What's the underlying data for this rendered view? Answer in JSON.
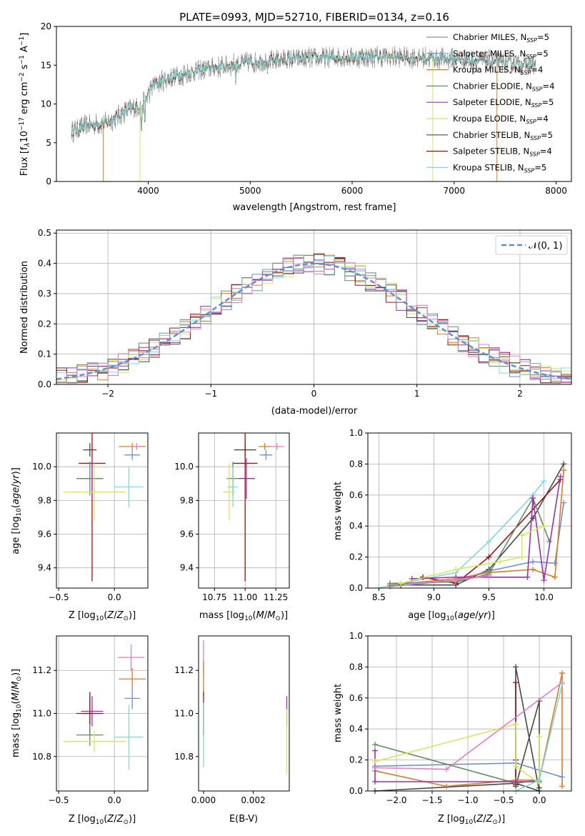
{
  "figure_title": "PLATE=0993, MJD=52710, FIBERID=0134, z=0.16",
  "colors": {
    "chabrier_miles": "#909090",
    "salpeter_miles": "#6f8fd8",
    "kroupa_miles": "#e0781f",
    "chabrier_elodie": "#5f8f5f",
    "salpeter_elodie": "#9b30b0",
    "kroupa_elodie": "#d6e85a",
    "chabrier_stelib": "#484848",
    "salpeter_stelib": "#a01010",
    "kroupa_stelib": "#7fdad8",
    "pink": "#e87bc8",
    "normal_curve": "#5b8fd6",
    "grid": "#b0b0b0"
  },
  "chart_data": [
    {
      "id": "spectrum",
      "type": "line",
      "xlabel": "wavelength [Angstrom, rest frame]",
      "ylabel": "Flux [fλ10⁻¹⁷ erg cm⁻² s⁻¹ A⁻¹]",
      "xlim": [
        3100,
        8150
      ],
      "ylim": [
        0,
        20
      ],
      "xticks": [
        4000,
        5000,
        6000,
        7000,
        8000
      ],
      "yticks": [
        0,
        5,
        10,
        15,
        20
      ],
      "grid": false,
      "legend_position": "right",
      "legend": [
        "Chabrier MILES, N_SSP=5",
        "Salpeter MILES, N_SSP=5",
        "Kroupa MILES, N_SSP=4",
        "Chabrier ELODIE, N_SSP=4",
        "Salpeter ELODIE, N_SSP=5",
        "Kroupa ELODIE, N_SSP=4",
        "Chabrier STELIB, N_SSP=5",
        "Salpeter STELIB, N_SSP=4",
        "Kroupa STELIB, N_SSP=5"
      ],
      "continuum_x": [
        3250,
        3400,
        3600,
        3800,
        3950,
        4050,
        4300,
        4600,
        5000,
        5400,
        5800,
        6200,
        6600,
        7000,
        7400,
        7800
      ],
      "continuum_y": [
        6.5,
        7.2,
        7.6,
        9.2,
        10.0,
        12.5,
        13.8,
        14.6,
        15.4,
        15.8,
        16.0,
        16.1,
        16.0,
        15.8,
        15.4,
        15.0
      ]
    },
    {
      "id": "residuals",
      "type": "histogram",
      "xlabel": "(data-model)/error",
      "ylabel": "Normed distribution",
      "xlim": [
        -2.5,
        2.5
      ],
      "ylim": [
        0,
        0.51
      ],
      "xticks": [
        -2,
        -1,
        0,
        1,
        2
      ],
      "yticks": [
        0.0,
        0.1,
        0.2,
        0.3,
        0.4,
        0.5
      ],
      "grid": true,
      "legend_position": "top-right",
      "legend": [
        "𝒩(0, 1)"
      ],
      "bin_width": 0.1
    },
    {
      "id": "age_vs_Z",
      "type": "scatter",
      "xlabel": "Z [log₁₀(Z/Z⊙)]",
      "ylabel": "age  [log₁₀(age/yr)]",
      "xlim": [
        -0.52,
        0.3
      ],
      "ylim": [
        9.28,
        10.2
      ],
      "xticks": [
        -0.5,
        0.0
      ],
      "yticks": [
        9.4,
        9.6,
        9.8,
        10.0
      ],
      "grid": true,
      "points": [
        {
          "c": "chabrier_stelib",
          "x": -0.22,
          "xerr": 0.06,
          "y": 10.1,
          "yerr": 0.04
        },
        {
          "c": "salpeter_stelib",
          "x": -0.2,
          "xerr": 0.12,
          "y": 10.02,
          "yerr": 0.7
        },
        {
          "c": "salpeter_elodie",
          "x": -0.2,
          "xerr": 0.1,
          "y": 9.93,
          "yerr": 0.12
        },
        {
          "c": "chabrier_elodie",
          "x": -0.22,
          "xerr": 0.12,
          "y": 9.93,
          "yerr": 0.1
        },
        {
          "c": "kroupa_elodie",
          "x": -0.18,
          "xerr": 0.28,
          "y": 9.85,
          "yerr": 0.17
        },
        {
          "c": "kroupa_miles",
          "x": 0.16,
          "xerr": 0.12,
          "y": 10.12,
          "yerr": 0.02
        },
        {
          "c": "pink",
          "x": 0.2,
          "xerr": 0.04,
          "y": 10.12,
          "yerr": 0.02
        },
        {
          "c": "salpeter_miles",
          "x": 0.16,
          "xerr": 0.07,
          "y": 10.07,
          "yerr": 0.03
        },
        {
          "c": "kroupa_stelib",
          "x": 0.13,
          "xerr": 0.13,
          "y": 9.88,
          "yerr": 0.12
        }
      ]
    },
    {
      "id": "age_vs_mass",
      "type": "scatter",
      "xlabel": "mass [log₁₀(M/M⊙)]",
      "ylabel": "",
      "xlim": [
        10.62,
        11.36
      ],
      "ylim": [
        9.28,
        10.2
      ],
      "xticks": [
        10.75,
        11.0,
        11.25
      ],
      "yticks": [
        9.4,
        9.6,
        9.8,
        10.0
      ],
      "grid": true,
      "points": [
        {
          "c": "chabrier_stelib",
          "x": 11.0,
          "xerr": 0.09,
          "y": 10.1,
          "yerr": 0.04
        },
        {
          "c": "salpeter_stelib",
          "x": 11.0,
          "xerr": 0.1,
          "y": 10.02,
          "yerr": 0.7
        },
        {
          "c": "salpeter_elodie",
          "x": 11.01,
          "xerr": 0.07,
          "y": 9.93,
          "yerr": 0.12
        },
        {
          "c": "chabrier_elodie",
          "x": 10.9,
          "xerr": 0.05,
          "y": 9.93,
          "yerr": 0.1
        },
        {
          "c": "kroupa_elodie",
          "x": 10.87,
          "xerr": 0.05,
          "y": 9.85,
          "yerr": 0.17
        },
        {
          "c": "kroupa_miles",
          "x": 11.16,
          "xerr": 0.05,
          "y": 10.12,
          "yerr": 0.02
        },
        {
          "c": "pink",
          "x": 11.26,
          "xerr": 0.06,
          "y": 10.12,
          "yerr": 0.02
        },
        {
          "c": "salpeter_miles",
          "x": 11.17,
          "xerr": 0.05,
          "y": 10.07,
          "yerr": 0.03
        },
        {
          "c": "kroupa_stelib",
          "x": 10.9,
          "xerr": 0.04,
          "y": 9.88,
          "yerr": 0.12
        }
      ]
    },
    {
      "id": "mass_vs_Z",
      "type": "scatter",
      "xlabel": "Z [log₁₀(Z/Z⊙)]",
      "ylabel": "mass [log₁₀(M/M⊙)]",
      "xlim": [
        -0.52,
        0.3
      ],
      "ylim": [
        10.64,
        11.36
      ],
      "xticks": [
        -0.5,
        0.0
      ],
      "yticks": [
        10.8,
        11.0,
        11.2
      ],
      "grid": true,
      "points": [
        {
          "c": "chabrier_stelib",
          "x": -0.22,
          "xerr": 0.06,
          "y": 11.0,
          "yerr": 0.08
        },
        {
          "c": "salpeter_stelib",
          "x": -0.22,
          "xerr": 0.12,
          "y": 11.0,
          "yerr": 0.1
        },
        {
          "c": "salpeter_elodie",
          "x": -0.2,
          "xerr": 0.1,
          "y": 11.01,
          "yerr": 0.07
        },
        {
          "c": "chabrier_elodie",
          "x": -0.22,
          "xerr": 0.12,
          "y": 10.9,
          "yerr": 0.05
        },
        {
          "c": "kroupa_elodie",
          "x": -0.18,
          "xerr": 0.28,
          "y": 10.87,
          "yerr": 0.05
        },
        {
          "c": "kroupa_miles",
          "x": 0.16,
          "xerr": 0.12,
          "y": 11.16,
          "yerr": 0.05
        },
        {
          "c": "pink",
          "x": 0.15,
          "xerr": 0.12,
          "y": 11.26,
          "yerr": 0.06
        },
        {
          "c": "salpeter_miles",
          "x": 0.16,
          "xerr": 0.07,
          "y": 11.07,
          "yerr": 0.05
        },
        {
          "c": "kroupa_stelib",
          "x": 0.13,
          "xerr": 0.13,
          "y": 10.89,
          "yerr": 0.15
        }
      ]
    },
    {
      "id": "mass_vs_ebv",
      "type": "scatter",
      "xlabel": "E(B-V)",
      "ylabel": "",
      "xlim": [
        -0.0002,
        0.00345
      ],
      "ylim": [
        10.64,
        11.36
      ],
      "xticks": [
        0.0,
        0.002
      ],
      "xtick_labels": [
        "0.000",
        "0.002"
      ],
      "yticks": [
        10.8,
        11.0,
        11.2
      ],
      "grid": false,
      "points": [
        {
          "c": "pink",
          "x": 0.0,
          "xerr": 0,
          "y": 11.26,
          "yerr": 0.08
        },
        {
          "c": "kroupa_miles",
          "x": 0.0,
          "xerr": 0,
          "y": 11.16,
          "yerr": 0.08
        },
        {
          "c": "salpeter_stelib",
          "x": 0.0,
          "xerr": 0,
          "y": 11.0,
          "yerr": 0.1
        },
        {
          "c": "kroupa_stelib",
          "x": 0.0,
          "xerr": 0,
          "y": 10.9,
          "yerr": 0.15
        },
        {
          "c": "salpeter_elodie",
          "x": 0.00335,
          "xerr": 0,
          "y": 11.01,
          "yerr": 0.07
        },
        {
          "c": "kroupa_elodie",
          "x": 0.00335,
          "xerr": 0,
          "y": 10.87,
          "yerr": 0.15
        }
      ]
    },
    {
      "id": "weight_vs_age",
      "type": "line",
      "xlabel": "age  [log₁₀(age/yr)]",
      "ylabel": "mass weight",
      "xlim": [
        8.4,
        10.25
      ],
      "ylim": [
        0,
        1.0
      ],
      "xticks": [
        8.5,
        9.0,
        9.5,
        10.0
      ],
      "yticks": [
        0.0,
        0.2,
        0.4,
        0.6,
        0.8,
        1.0
      ],
      "grid": true,
      "series": [
        {
          "c": "kroupa_stelib",
          "x": [
            8.5,
            9.2,
            9.5,
            9.9,
            10.0
          ],
          "y": [
            0.0,
            0.1,
            0.3,
            0.6,
            0.69
          ]
        },
        {
          "c": "chabrier_stelib",
          "x": [
            8.7,
            9.2,
            9.5,
            9.9,
            10.18
          ],
          "y": [
            0.02,
            0.02,
            0.12,
            0.45,
            0.8
          ]
        },
        {
          "c": "salpeter_stelib",
          "x": [
            8.9,
            9.2,
            9.5,
            10.15
          ],
          "y": [
            0.07,
            0.03,
            0.2,
            0.7
          ]
        },
        {
          "c": "salpeter_miles",
          "x": [
            8.6,
            9.2,
            9.5,
            9.9,
            10.1,
            10.18
          ],
          "y": [
            0.01,
            0.05,
            0.11,
            0.17,
            0.16,
            0.55
          ]
        },
        {
          "c": "kroupa_miles",
          "x": [
            8.6,
            9.2,
            9.5,
            9.9,
            10.1,
            10.18
          ],
          "y": [
            0.02,
            0.06,
            0.1,
            0.12,
            0.07,
            0.76
          ]
        },
        {
          "c": "chabrier_elodie",
          "x": [
            8.6,
            9.2,
            9.5,
            9.9,
            10.05
          ],
          "y": [
            0.03,
            0.04,
            0.09,
            0.58,
            0.3
          ]
        },
        {
          "c": "salpeter_elodie",
          "x": [
            8.8,
            9.2,
            9.85,
            9.9,
            10.0,
            10.15
          ],
          "y": [
            0.06,
            0.07,
            0.07,
            0.58,
            0.05,
            0.72
          ]
        },
        {
          "c": "kroupa_elodie",
          "x": [
            8.7,
            9.2,
            9.6,
            9.8,
            9.8,
            10.0
          ],
          "y": [
            0.03,
            0.12,
            0.17,
            0.2,
            0.34,
            0.4
          ]
        },
        {
          "c": "pink",
          "x": [
            8.8,
            9.2,
            9.5
          ],
          "y": [
            0.03,
            0.05,
            0.08
          ]
        }
      ]
    },
    {
      "id": "weight_vs_Z",
      "type": "line",
      "xlabel": "Z [log₁₀(Z/Z⊙)]",
      "ylabel": "mass weight",
      "xlim": [
        -2.4,
        0.45
      ],
      "ylim": [
        0,
        1.0
      ],
      "xticks": [
        -2.0,
        -1.5,
        -1.0,
        -0.5,
        0.0
      ],
      "yticks": [
        0.0,
        0.2,
        0.4,
        0.6,
        0.8,
        1.0
      ],
      "grid": true,
      "series": [
        {
          "c": "chabrier_stelib",
          "x": [
            -2.3,
            -0.33,
            0.0,
            -0.33,
            -0.33,
            0.0,
            0.0
          ],
          "y": [
            0.0,
            0.05,
            0.0,
            0.8,
            0.03,
            0.58,
            0.02
          ]
        },
        {
          "c": "salpeter_stelib",
          "x": [
            -0.33,
            -0.33,
            -0.33
          ],
          "y": [
            0.7,
            0.2,
            0.04
          ]
        },
        {
          "c": "kroupa_miles",
          "x": [
            -2.3,
            -1.3,
            -0.33,
            0.0,
            0.32,
            0.32
          ],
          "y": [
            0.13,
            0.03,
            0.07,
            0.07,
            0.76,
            0.03
          ]
        },
        {
          "c": "salpeter_miles",
          "x": [
            -2.3,
            -0.33,
            0.32
          ],
          "y": [
            0.16,
            0.18,
            0.09
          ]
        },
        {
          "c": "chabrier_elodie",
          "x": [
            -2.3,
            -0.33,
            0.0
          ],
          "y": [
            0.3,
            0.05,
            0.07
          ]
        },
        {
          "c": "salpeter_elodie",
          "x": [
            -2.3,
            -2.3,
            -0.33,
            0.0
          ],
          "y": [
            0.26,
            0.06,
            0.06,
            0.06
          ]
        },
        {
          "c": "kroupa_elodie",
          "x": [
            -2.3,
            -0.33,
            -0.33,
            0.0,
            0.0
          ],
          "y": [
            0.19,
            0.43,
            0.16,
            0.05,
            0.35
          ]
        },
        {
          "c": "pink",
          "x": [
            -2.3,
            -1.3,
            0.32
          ],
          "y": [
            0.15,
            0.14,
            0.7
          ]
        },
        {
          "c": "kroupa_stelib",
          "x": [
            -0.33,
            0.0,
            0.32
          ],
          "y": [
            0.0,
            0.07,
            0.69
          ]
        }
      ]
    }
  ]
}
